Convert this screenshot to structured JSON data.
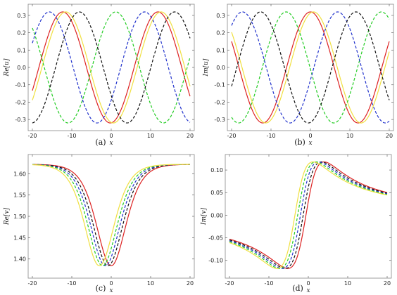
{
  "chart_data": [
    {
      "panel": "a",
      "type": "line",
      "caption": "(a)",
      "xlabel": "x",
      "ylabel": "Re[u]",
      "xlim": [
        -20,
        20
      ],
      "ylim": [
        -0.34,
        0.34
      ],
      "xticks": [
        -20,
        -10,
        0,
        10,
        20
      ],
      "yticks": [
        -0.3,
        -0.2,
        -0.1,
        0.0,
        0.1,
        0.2,
        0.3
      ],
      "ytick_labels": [
        "-0.3",
        "-0.2",
        "-0.1",
        "0.0",
        "0.1",
        "0.2",
        "0.3"
      ],
      "series": [
        {
          "color": "#dd2222",
          "dashed": false,
          "amplitude": 0.32,
          "wavenumber": 0.26,
          "phase": 3.2,
          "style": "cos"
        },
        {
          "color": "#f0e040",
          "dashed": false,
          "amplitude": 0.32,
          "wavenumber": 0.26,
          "phase": 3.0,
          "style": "cos"
        },
        {
          "color": "#22cc22",
          "dashed": true,
          "amplitude": 0.32,
          "wavenumber": 0.26,
          "phase": -0.3,
          "style": "cos"
        },
        {
          "color": "#2233cc",
          "dashed": true,
          "amplitude": 0.32,
          "wavenumber": 0.26,
          "phase": -2.2,
          "style": "cos"
        },
        {
          "color": "#111111",
          "dashed": true,
          "amplitude": 0.32,
          "wavenumber": 0.26,
          "phase": 2.1,
          "style": "cos"
        }
      ]
    },
    {
      "panel": "b",
      "type": "line",
      "caption": "(b)",
      "xlabel": "x",
      "ylabel": "Im[u]",
      "xlim": [
        -20,
        20
      ],
      "ylim": [
        -0.34,
        0.34
      ],
      "xticks": [
        -20,
        -10,
        0,
        10,
        20
      ],
      "yticks": [
        -0.3,
        -0.2,
        -0.1,
        0.0,
        0.1,
        0.2,
        0.3
      ],
      "ytick_labels": [
        "-0.3",
        "-0.2",
        "-0.1",
        "0.0",
        "0.1",
        "0.2",
        "0.3"
      ],
      "series": [
        {
          "color": "#dd2222",
          "dashed": false,
          "amplitude": 0.32,
          "wavenumber": 0.26,
          "phase": 0.0,
          "style": "cos"
        },
        {
          "color": "#f0e040",
          "dashed": false,
          "amplitude": 0.32,
          "wavenumber": 0.26,
          "phase": -0.2,
          "style": "cos"
        },
        {
          "color": "#22cc22",
          "dashed": true,
          "amplitude": 0.32,
          "wavenumber": 0.26,
          "phase": 1.6,
          "style": "cos"
        },
        {
          "color": "#2233cc",
          "dashed": true,
          "amplitude": 0.32,
          "wavenumber": 0.26,
          "phase": -1.8,
          "style": "cos"
        },
        {
          "color": "#111111",
          "dashed": true,
          "amplitude": 0.32,
          "wavenumber": 0.26,
          "phase": -3.0,
          "style": "cos"
        }
      ]
    },
    {
      "panel": "c",
      "type": "line",
      "caption": "(c)",
      "xlabel": "x",
      "ylabel": "Re[v]",
      "xlim": [
        -20,
        20
      ],
      "ylim": [
        1.365,
        1.635
      ],
      "xticks": [
        -20,
        -10,
        0,
        10,
        20
      ],
      "yticks": [
        1.4,
        1.45,
        1.5,
        1.55,
        1.6
      ],
      "ytick_labels": [
        "1.40",
        "1.45",
        "1.50",
        "1.55",
        "1.60"
      ],
      "series": [
        {
          "color": "#dd2222",
          "dashed": false,
          "base": 1.622,
          "depth": 0.238,
          "center": 0.0,
          "width": 5.0,
          "style": "dip"
        },
        {
          "color": "#111111",
          "dashed": true,
          "base": 1.622,
          "depth": 0.238,
          "center": -0.8,
          "width": 5.0,
          "style": "dip"
        },
        {
          "color": "#2233cc",
          "dashed": true,
          "base": 1.622,
          "depth": 0.238,
          "center": -1.5,
          "width": 5.0,
          "style": "dip"
        },
        {
          "color": "#22cc22",
          "dashed": true,
          "base": 1.622,
          "depth": 0.238,
          "center": -2.2,
          "width": 5.0,
          "style": "dip"
        },
        {
          "color": "#f0e040",
          "dashed": false,
          "base": 1.622,
          "depth": 0.238,
          "center": -3.0,
          "width": 5.0,
          "style": "dip"
        }
      ]
    },
    {
      "panel": "d",
      "type": "line",
      "caption": "(d)",
      "xlabel": "x",
      "ylabel": "Im[v]",
      "xlim": [
        -20,
        20
      ],
      "ylim": [
        -0.13,
        0.125
      ],
      "xticks": [
        -20,
        -10,
        0,
        10,
        20
      ],
      "yticks": [
        -0.1,
        -0.05,
        0.0,
        0.05,
        0.1
      ],
      "ytick_labels": [
        "-0.10",
        "-0.05",
        "0.00",
        "0.05",
        "0.10"
      ],
      "series": [
        {
          "color": "#dd2222",
          "dashed": false,
          "amplitude": 0.118,
          "center": -0.6,
          "width": 4.6,
          "style": "dipole"
        },
        {
          "color": "#111111",
          "dashed": true,
          "amplitude": 0.118,
          "center": -1.3,
          "width": 4.6,
          "style": "dipole"
        },
        {
          "color": "#2233cc",
          "dashed": true,
          "amplitude": 0.118,
          "center": -2.0,
          "width": 4.6,
          "style": "dipole"
        },
        {
          "color": "#22cc22",
          "dashed": true,
          "amplitude": 0.118,
          "center": -2.7,
          "width": 4.6,
          "style": "dipole"
        },
        {
          "color": "#f0e040",
          "dashed": false,
          "amplitude": 0.118,
          "center": -3.4,
          "width": 4.6,
          "style": "dipole"
        }
      ]
    }
  ]
}
